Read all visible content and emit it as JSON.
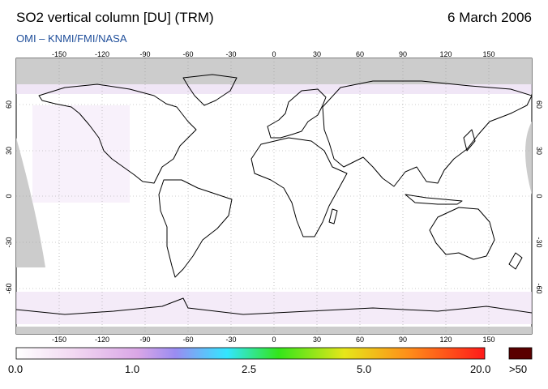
{
  "header": {
    "title": "SO2 vertical column [DU] (TRM)",
    "date": "6 March 2006",
    "credit": "OMI  –  KNMI/FMI/NASA"
  },
  "map": {
    "lon_ticks": [
      "-150",
      "-120",
      "-90",
      "-60",
      "-30",
      "0",
      "30",
      "60",
      "90",
      "120",
      "150"
    ],
    "lat_ticks": [
      "60",
      "30",
      "0",
      "-30",
      "-60"
    ],
    "no_data_color": "#cccccc",
    "coast_color": "#000000"
  },
  "colorbar": {
    "labels": [
      "0.0",
      "1.0",
      "2.5",
      "5.0",
      "20.0"
    ],
    "overflow_label": ">50",
    "overflow_color": "#5a0000",
    "stops": [
      "#ffffff",
      "#f2d9f2",
      "#d9a6e6",
      "#9a8cf2",
      "#33e6ff",
      "#33e61a",
      "#e6e61a",
      "#ff8c1a",
      "#ff1a1a"
    ]
  }
}
